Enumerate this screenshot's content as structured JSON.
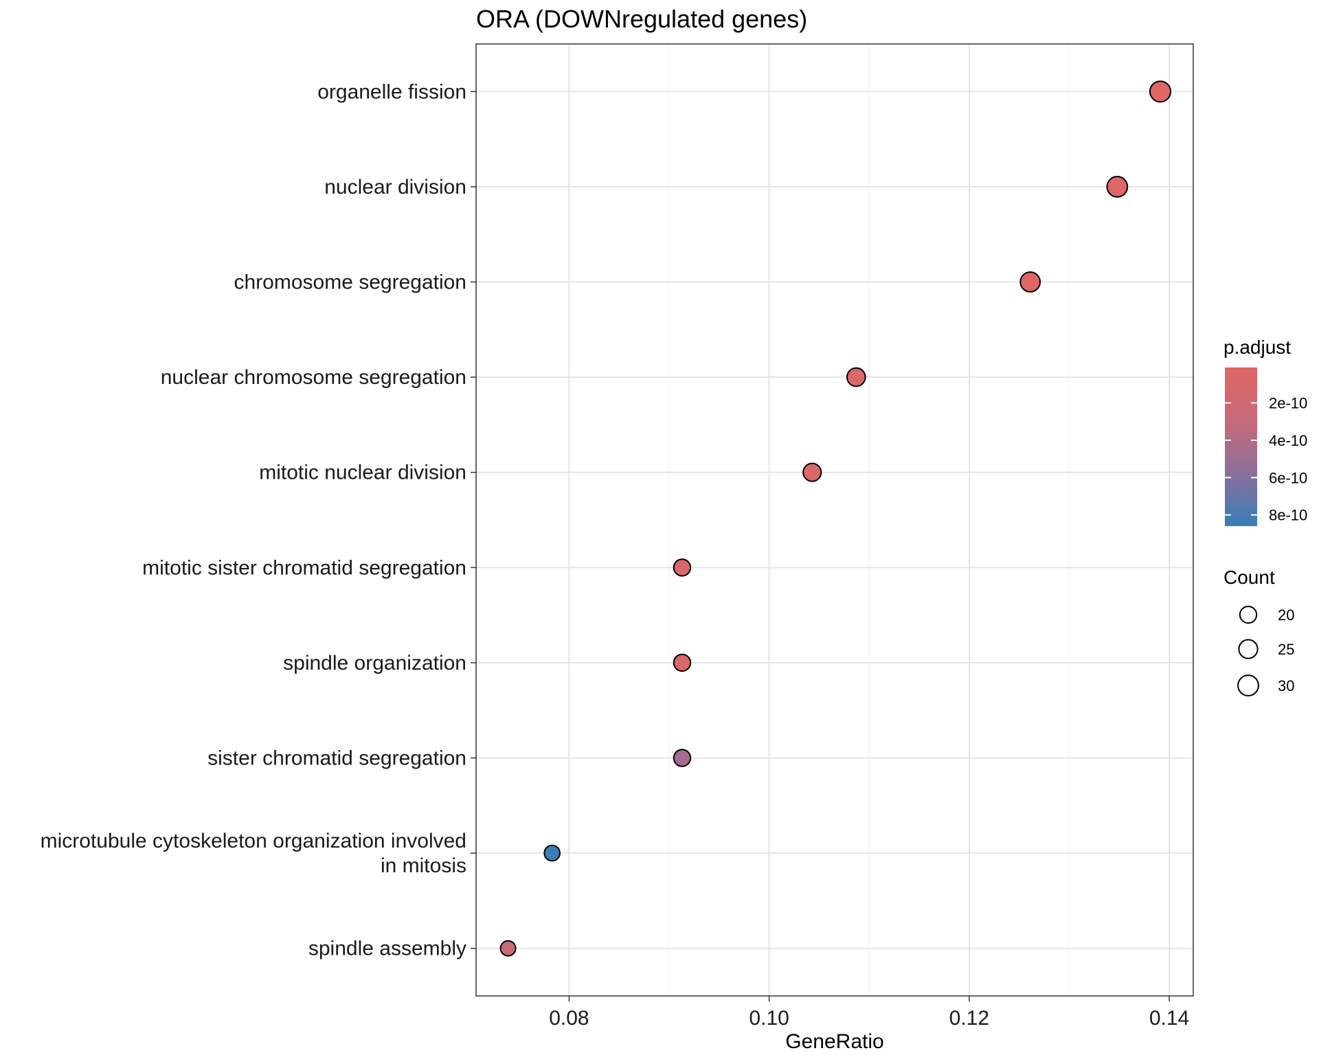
{
  "chart_data": {
    "type": "scatter",
    "title": "ORA (DOWNregulated genes)",
    "xlabel": "GeneRatio",
    "ylabel": "",
    "xlim": [
      0.0707,
      0.1424
    ],
    "x_ticks": [
      "0.08",
      "0.10",
      "0.12",
      "0.14"
    ],
    "x_tick_values": [
      0.08,
      0.1,
      0.12,
      0.14
    ],
    "grid": true,
    "legend_position": "right",
    "categories": [
      [
        "organelle fission"
      ],
      [
        "nuclear division"
      ],
      [
        "chromosome segregation"
      ],
      [
        "nuclear chromosome segregation"
      ],
      [
        "mitotic nuclear division"
      ],
      [
        "mitotic sister chromatid segregation"
      ],
      [
        "spindle organization"
      ],
      [
        "sister chromatid segregation"
      ],
      [
        "microtubule cytoskeleton organization involved",
        "in mitosis"
      ],
      [
        "spindle assembly"
      ]
    ],
    "points": [
      {
        "x": 0.1391,
        "count": 32,
        "p_adjust": 1e-11
      },
      {
        "x": 0.1348,
        "count": 31,
        "p_adjust": 2e-11
      },
      {
        "x": 0.1261,
        "count": 29,
        "p_adjust": 3e-11
      },
      {
        "x": 0.1087,
        "count": 25,
        "p_adjust": 5e-11
      },
      {
        "x": 0.1043,
        "count": 24,
        "p_adjust": 6e-11
      },
      {
        "x": 0.0913,
        "count": 21,
        "p_adjust": 8e-11
      },
      {
        "x": 0.0913,
        "count": 21,
        "p_adjust": 8e-11
      },
      {
        "x": 0.0913,
        "count": 21,
        "p_adjust": 4.6e-10
      },
      {
        "x": 0.0783,
        "count": 18,
        "p_adjust": 8.5e-10
      },
      {
        "x": 0.0739,
        "count": 17,
        "p_adjust": 2.6e-10
      }
    ],
    "color_legend": {
      "title": "p.adjust",
      "tick_labels": [
        "2e-10",
        "4e-10",
        "6e-10",
        "8e-10"
      ],
      "tick_values": [
        2e-10,
        4e-10,
        6e-10,
        8e-10
      ],
      "range": [
        1e-11,
        8.6e-10
      ],
      "low_color": "#E06666",
      "high_color": "#377EB8"
    },
    "size_legend": {
      "title": "Count",
      "values": [
        20,
        25,
        30
      ],
      "labels": [
        "20",
        "25",
        "30"
      ]
    }
  }
}
